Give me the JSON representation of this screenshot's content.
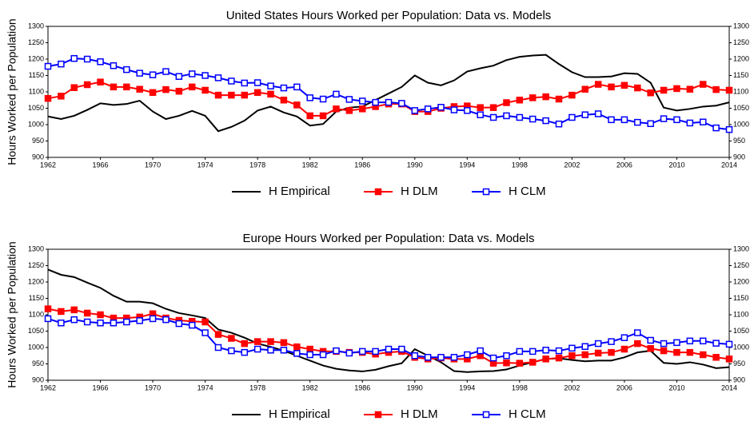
{
  "chart_data": [
    {
      "type": "line",
      "title": "United States Hours Worked per Population: Data vs. Models",
      "y_label": "Hours Worked per Population",
      "x": [
        1962,
        1963,
        1964,
        1965,
        1966,
        1967,
        1968,
        1969,
        1970,
        1971,
        1972,
        1973,
        1974,
        1975,
        1976,
        1977,
        1978,
        1979,
        1980,
        1981,
        1982,
        1983,
        1984,
        1985,
        1986,
        1987,
        1988,
        1989,
        1990,
        1991,
        1992,
        1993,
        1994,
        1995,
        1996,
        1997,
        1998,
        1999,
        2000,
        2001,
        2002,
        2003,
        2004,
        2005,
        2006,
        2007,
        2008,
        2009,
        2010,
        2011,
        2012,
        2013,
        2014
      ],
      "xlim": [
        1962,
        2014
      ],
      "xticks": [
        1962,
        1966,
        1970,
        1974,
        1978,
        1982,
        1986,
        1990,
        1994,
        1998,
        2002,
        2006,
        2010,
        2014
      ],
      "ylim": [
        900,
        1300
      ],
      "yticks": [
        900,
        950,
        1000,
        1050,
        1100,
        1150,
        1200,
        1250,
        1300
      ],
      "y2lim": [
        900,
        1300
      ],
      "y2ticks": [
        900,
        950,
        1000,
        1050,
        1100,
        1150,
        1200,
        1250,
        1300
      ],
      "legend": "bottom",
      "series": [
        {
          "name": "H Empirical",
          "color": "#000000",
          "marker": "none",
          "values": [
            1025,
            1017,
            1027,
            1045,
            1065,
            1060,
            1063,
            1073,
            1040,
            1017,
            1027,
            1042,
            1027,
            980,
            993,
            1012,
            1043,
            1055,
            1037,
            1025,
            997,
            1002,
            1040,
            1052,
            1055,
            1075,
            1095,
            1115,
            1150,
            1128,
            1120,
            1135,
            1162,
            1172,
            1180,
            1197,
            1207,
            1211,
            1213,
            1185,
            1160,
            1145,
            1145,
            1147,
            1157,
            1155,
            1128,
            1052,
            1043,
            1048,
            1055,
            1058,
            1068
          ]
        },
        {
          "name": "H DLM",
          "color": "#ff0000",
          "marker": "filled-square",
          "values": [
            1080,
            1087,
            1113,
            1122,
            1130,
            1115,
            1115,
            1108,
            1098,
            1107,
            1102,
            1115,
            1105,
            1090,
            1090,
            1090,
            1098,
            1093,
            1075,
            1060,
            1027,
            1027,
            1048,
            1043,
            1048,
            1055,
            1063,
            1063,
            1040,
            1040,
            1050,
            1055,
            1057,
            1052,
            1052,
            1067,
            1075,
            1082,
            1085,
            1078,
            1090,
            1108,
            1123,
            1115,
            1120,
            1112,
            1097,
            1105,
            1110,
            1108,
            1123,
            1107,
            1105
          ]
        },
        {
          "name": "H CLM",
          "color": "#0000ff",
          "marker": "open-square",
          "values": [
            1178,
            1185,
            1202,
            1200,
            1192,
            1180,
            1168,
            1157,
            1152,
            1162,
            1147,
            1155,
            1150,
            1143,
            1133,
            1127,
            1128,
            1118,
            1112,
            1115,
            1082,
            1078,
            1093,
            1077,
            1072,
            1068,
            1068,
            1065,
            1043,
            1048,
            1053,
            1045,
            1043,
            1030,
            1022,
            1027,
            1022,
            1017,
            1012,
            1002,
            1022,
            1030,
            1033,
            1015,
            1015,
            1007,
            1003,
            1018,
            1015,
            1005,
            1008,
            990,
            985
          ]
        }
      ]
    },
    {
      "type": "line",
      "title": "Europe Hours Worked per Population: Data vs. Models",
      "y_label": "Hours Worked per Population",
      "x": [
        1962,
        1963,
        1964,
        1965,
        1966,
        1967,
        1968,
        1969,
        1970,
        1971,
        1972,
        1973,
        1974,
        1975,
        1976,
        1977,
        1978,
        1979,
        1980,
        1981,
        1982,
        1983,
        1984,
        1985,
        1986,
        1987,
        1988,
        1989,
        1990,
        1991,
        1992,
        1993,
        1994,
        1995,
        1996,
        1997,
        1998,
        1999,
        2000,
        2001,
        2002,
        2003,
        2004,
        2005,
        2006,
        2007,
        2008,
        2009,
        2010,
        2011,
        2012,
        2013,
        2014
      ],
      "xlim": [
        1962,
        2014
      ],
      "xticks": [
        1962,
        1966,
        1970,
        1974,
        1978,
        1982,
        1986,
        1990,
        1994,
        1998,
        2002,
        2006,
        2010,
        2014
      ],
      "ylim": [
        900,
        1300
      ],
      "yticks": [
        900,
        950,
        1000,
        1050,
        1100,
        1150,
        1200,
        1250,
        1300
      ],
      "y2lim": [
        900,
        1300
      ],
      "y2ticks": [
        900,
        950,
        1000,
        1050,
        1100,
        1150,
        1200,
        1250,
        1300
      ],
      "legend": "bottom",
      "series": [
        {
          "name": "H Empirical",
          "color": "#000000",
          "marker": "none",
          "values": [
            1238,
            1222,
            1215,
            1198,
            1182,
            1158,
            1140,
            1140,
            1135,
            1118,
            1105,
            1098,
            1090,
            1055,
            1045,
            1030,
            1012,
            1002,
            990,
            975,
            960,
            945,
            935,
            930,
            927,
            932,
            943,
            952,
            995,
            975,
            955,
            928,
            925,
            927,
            928,
            933,
            945,
            955,
            965,
            967,
            962,
            958,
            960,
            960,
            970,
            985,
            990,
            953,
            950,
            955,
            948,
            937,
            940
          ]
        },
        {
          "name": "H DLM",
          "color": "#ff0000",
          "marker": "filled-square",
          "values": [
            1118,
            1110,
            1115,
            1105,
            1100,
            1090,
            1090,
            1093,
            1103,
            1090,
            1083,
            1080,
            1078,
            1040,
            1028,
            1012,
            1018,
            1018,
            1015,
            1002,
            995,
            988,
            988,
            985,
            985,
            980,
            985,
            988,
            970,
            965,
            968,
            965,
            965,
            975,
            952,
            953,
            952,
            955,
            965,
            968,
            975,
            978,
            983,
            985,
            995,
            1012,
            997,
            990,
            985,
            985,
            978,
            970,
            965
          ]
        },
        {
          "name": "H CLM",
          "color": "#0000ff",
          "marker": "open-square",
          "values": [
            1088,
            1075,
            1085,
            1078,
            1075,
            1075,
            1078,
            1082,
            1088,
            1085,
            1073,
            1068,
            1045,
            1000,
            990,
            985,
            995,
            992,
            992,
            982,
            978,
            978,
            990,
            983,
            988,
            988,
            995,
            995,
            975,
            970,
            970,
            970,
            978,
            990,
            968,
            975,
            988,
            988,
            992,
            990,
            998,
            1003,
            1012,
            1018,
            1030,
            1045,
            1022,
            1012,
            1015,
            1020,
            1020,
            1013,
            1010
          ]
        }
      ]
    }
  ]
}
